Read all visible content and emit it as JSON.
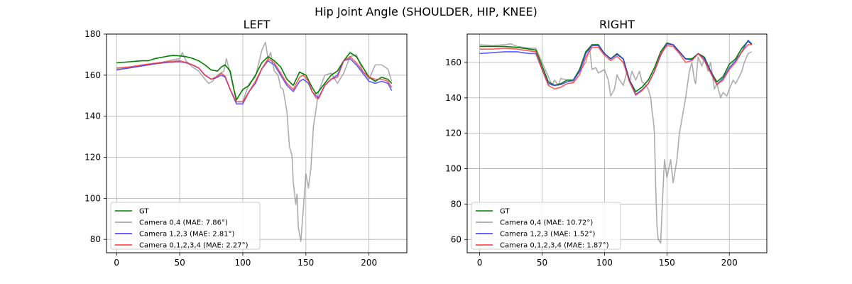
{
  "figure": {
    "suptitle": "Hip Joint Angle (SHOULDER, HIP, KNEE)"
  },
  "chart_data": [
    {
      "type": "line",
      "title": "LEFT",
      "xlabel": "",
      "ylabel": "",
      "xlim": [
        -8,
        230
      ],
      "ylim": [
        73.5,
        180
      ],
      "xticks": [
        0,
        50,
        100,
        150,
        200
      ],
      "yticks": [
        80,
        100,
        120,
        140,
        160,
        180
      ],
      "grid": true,
      "legend_position": "lower-left",
      "series": [
        {
          "name": "GT",
          "color": "#008000",
          "x": [
            0,
            10,
            20,
            25,
            30,
            40,
            45,
            50,
            55,
            60,
            65,
            70,
            75,
            80,
            83,
            86,
            90,
            93,
            95,
            100,
            105,
            110,
            115,
            120,
            125,
            130,
            135,
            140,
            145,
            150,
            155,
            158,
            160,
            165,
            170,
            175,
            180,
            185,
            190,
            195,
            200,
            205,
            210,
            215,
            218
          ],
          "y": [
            166,
            166.5,
            167,
            167,
            168,
            169.2,
            169.6,
            169.4,
            169,
            168.2,
            167,
            165,
            162.5,
            162,
            164,
            165,
            162,
            153,
            148,
            153,
            155,
            160,
            166,
            169,
            167,
            164,
            158,
            155,
            161.5,
            160,
            154,
            151,
            152,
            156,
            160,
            162,
            167,
            171,
            169,
            164,
            159,
            157,
            159,
            158,
            156
          ]
        },
        {
          "name": "Camera 0,4 (MAE: 7.86°)",
          "color": "#999999",
          "x": [
            0,
            10,
            20,
            30,
            40,
            45,
            50,
            52,
            55,
            60,
            65,
            70,
            73,
            76,
            80,
            85,
            87,
            90,
            95,
            100,
            105,
            110,
            115,
            118,
            120,
            122,
            125,
            128,
            130,
            132,
            135,
            137,
            139,
            140,
            142,
            143,
            144,
            146,
            148,
            150,
            152,
            154,
            156,
            158,
            160,
            162,
            165,
            170,
            175,
            180,
            185,
            190,
            195,
            200,
            205,
            210,
            215,
            218
          ],
          "y": [
            163,
            163.5,
            164.5,
            165.5,
            166.8,
            167.5,
            168,
            171,
            167,
            164,
            162,
            158,
            156,
            157,
            160,
            162,
            168,
            161,
            147,
            147,
            156,
            159,
            172,
            176,
            168,
            171,
            162,
            160,
            154,
            153,
            142,
            125,
            121,
            108,
            97,
            102,
            86,
            79,
            95,
            112,
            105,
            115,
            135,
            143,
            152,
            155,
            160,
            161,
            156,
            161,
            169,
            170,
            162,
            158,
            165,
            165,
            163,
            157
          ]
        },
        {
          "name": "Camera 1,2,3 (MAE: 2.81°)",
          "color": "#3333ff",
          "x": [
            0,
            10,
            20,
            30,
            40,
            50,
            55,
            60,
            65,
            70,
            75,
            80,
            83,
            86,
            90,
            95,
            100,
            105,
            110,
            115,
            120,
            125,
            130,
            135,
            140,
            145,
            148,
            152,
            155,
            158,
            160,
            165,
            170,
            175,
            180,
            185,
            190,
            195,
            200,
            205,
            210,
            215,
            218
          ],
          "y": [
            162.5,
            163.5,
            164.5,
            165.5,
            166.2,
            166.5,
            166,
            165,
            163.5,
            160,
            158,
            159,
            160,
            159,
            153,
            146,
            146,
            152,
            156,
            163,
            167,
            165,
            160,
            155,
            152,
            157,
            158,
            156,
            152,
            150,
            149,
            155,
            158,
            160,
            167,
            168,
            165,
            161,
            157,
            156,
            157,
            156,
            152.5
          ]
        },
        {
          "name": "Camera 0,1,2,3,4 (MAE: 2.27°)",
          "color": "#ff3333",
          "x": [
            0,
            10,
            20,
            30,
            40,
            50,
            55,
            60,
            65,
            70,
            75,
            80,
            83,
            86,
            90,
            95,
            100,
            105,
            110,
            115,
            120,
            125,
            130,
            135,
            140,
            145,
            148,
            152,
            155,
            158,
            160,
            165,
            170,
            175,
            180,
            185,
            190,
            195,
            200,
            205,
            210,
            215,
            218
          ],
          "y": [
            163.5,
            164,
            165,
            165.8,
            166.5,
            167,
            166.2,
            165,
            163.5,
            160,
            158,
            159.5,
            161,
            159.5,
            153,
            147,
            147,
            152,
            157,
            163,
            168,
            166,
            161,
            156,
            153,
            159,
            160,
            157,
            152,
            149,
            148.5,
            155,
            158,
            159,
            167,
            169,
            166,
            162,
            159,
            158,
            158,
            157,
            154
          ]
        }
      ]
    },
    {
      "type": "line",
      "title": "RIGHT",
      "xlabel": "",
      "ylabel": "",
      "xlim": [
        -10,
        230
      ],
      "ylim": [
        52.5,
        176
      ],
      "xticks": [
        0,
        50,
        100,
        150,
        200
      ],
      "yticks": [
        60,
        80,
        100,
        120,
        140,
        160
      ],
      "grid": true,
      "legend_position": "lower-left",
      "series": [
        {
          "name": "GT",
          "color": "#008000",
          "x": [
            0,
            10,
            20,
            30,
            40,
            45,
            50,
            55,
            60,
            65,
            70,
            75,
            80,
            85,
            90,
            95,
            100,
            105,
            110,
            115,
            120,
            125,
            130,
            135,
            140,
            145,
            150,
            155,
            160,
            165,
            170,
            175,
            180,
            185,
            190,
            195,
            200,
            205,
            210,
            215,
            218
          ],
          "y": [
            169,
            169,
            169,
            168.5,
            167.5,
            167,
            158,
            149,
            147,
            148,
            150,
            150,
            156,
            166,
            170,
            170,
            165,
            162,
            165,
            162,
            150,
            143.5,
            146,
            150,
            157,
            166,
            171,
            170,
            166,
            162,
            162,
            165,
            163,
            155,
            149,
            152,
            159,
            162,
            168,
            172,
            170
          ]
        },
        {
          "name": "Camera 0,4 (MAE: 10.72°)",
          "color": "#999999",
          "x": [
            0,
            10,
            20,
            25,
            30,
            40,
            45,
            50,
            55,
            58,
            60,
            63,
            65,
            70,
            75,
            80,
            85,
            88,
            90,
            93,
            95,
            100,
            103,
            105,
            108,
            110,
            112,
            115,
            118,
            120,
            122,
            125,
            128,
            130,
            132,
            135,
            137,
            138,
            139,
            140,
            141,
            142,
            143,
            145,
            146,
            148,
            150,
            153,
            155,
            158,
            160,
            163,
            165,
            168,
            170,
            172,
            173,
            175,
            178,
            180,
            183,
            185,
            188,
            190,
            193,
            195,
            198,
            200,
            203,
            205,
            208,
            210,
            212,
            215,
            218
          ],
          "y": [
            170,
            169.5,
            170,
            170.5,
            169,
            168,
            168,
            160,
            152,
            147,
            150,
            147,
            151,
            150,
            149,
            155,
            160,
            168,
            156,
            157,
            154,
            156,
            150,
            141,
            145,
            153,
            150,
            147,
            155,
            149,
            155,
            150,
            155,
            149,
            148,
            145,
            140,
            133,
            128,
            120,
            90,
            68,
            60,
            58,
            75,
            105,
            95,
            105,
            92,
            105,
            120,
            132,
            140,
            155,
            160,
            150,
            148,
            163,
            158,
            162,
            155,
            160,
            145,
            148,
            140,
            143,
            141,
            145,
            150,
            148,
            152,
            155,
            160,
            165,
            166
          ]
        },
        {
          "name": "Camera 1,2,3 (MAE: 1.52°)",
          "color": "#3333ff",
          "x": [
            0,
            10,
            20,
            30,
            40,
            45,
            50,
            55,
            60,
            65,
            70,
            75,
            80,
            85,
            90,
            95,
            100,
            105,
            110,
            115,
            120,
            125,
            130,
            135,
            140,
            145,
            150,
            155,
            160,
            165,
            170,
            175,
            180,
            185,
            190,
            195,
            200,
            205,
            210,
            215,
            218
          ],
          "y": [
            165,
            165.5,
            166,
            166,
            165,
            165,
            156,
            148,
            147,
            147.5,
            149,
            150,
            155,
            165,
            169.5,
            169.5,
            165,
            162,
            164.5,
            162,
            150,
            142,
            144.5,
            148,
            155,
            164,
            170.5,
            170,
            166,
            162,
            161.5,
            165,
            162,
            155,
            147.5,
            151,
            157,
            161,
            166,
            172.5,
            170.5
          ]
        },
        {
          "name": "Camera 0,1,2,3,4 (MAE: 1.87°)",
          "color": "#ff3333",
          "x": [
            0,
            10,
            20,
            30,
            40,
            45,
            50,
            55,
            60,
            65,
            70,
            75,
            80,
            85,
            90,
            95,
            100,
            105,
            110,
            115,
            120,
            125,
            130,
            135,
            140,
            145,
            150,
            155,
            160,
            165,
            170,
            175,
            180,
            185,
            190,
            195,
            200,
            205,
            210,
            215,
            218
          ],
          "y": [
            167.5,
            167.5,
            168,
            167.5,
            166.5,
            166,
            156,
            147,
            145,
            146,
            148,
            148.5,
            153,
            163,
            168.5,
            168.5,
            164,
            161,
            163.5,
            160,
            149,
            141.5,
            144,
            148,
            155,
            165,
            169.5,
            169,
            165,
            160,
            161,
            165,
            161,
            154,
            147.5,
            150,
            156,
            160,
            166,
            170,
            170
          ]
        }
      ]
    }
  ]
}
